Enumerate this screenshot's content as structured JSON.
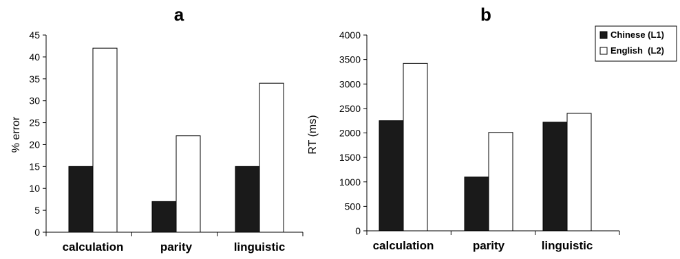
{
  "legend": {
    "entries": [
      "Chinese (L1)",
      "English  (L2)"
    ],
    "placement": "top-right"
  },
  "series_colors": [
    "#1a1a1a",
    "#ffffff"
  ],
  "chart_data": [
    {
      "type": "bar",
      "title": "a",
      "xlabel": "",
      "ylabel": "% error",
      "categories": [
        "calculation",
        "parity",
        "linguistic"
      ],
      "series": [
        {
          "name": "Chinese (L1)",
          "values": [
            15,
            7,
            15
          ]
        },
        {
          "name": "English  (L2)",
          "values": [
            42,
            22,
            34
          ]
        }
      ],
      "ylim": [
        0,
        45
      ],
      "yticks": [
        0,
        5,
        10,
        15,
        20,
        25,
        30,
        35,
        40,
        45
      ],
      "grid": false
    },
    {
      "type": "bar",
      "title": "b",
      "xlabel": "",
      "ylabel": "RT (ms)",
      "categories": [
        "calculation",
        "parity",
        "linguistic"
      ],
      "series": [
        {
          "name": "Chinese (L1)",
          "values": [
            2250,
            1100,
            2220
          ]
        },
        {
          "name": "English  (L2)",
          "values": [
            3420,
            2010,
            2400
          ]
        }
      ],
      "ylim": [
        0,
        4000
      ],
      "yticks": [
        0,
        500,
        1000,
        1500,
        2000,
        2500,
        3000,
        3500,
        4000
      ],
      "grid": false
    }
  ]
}
